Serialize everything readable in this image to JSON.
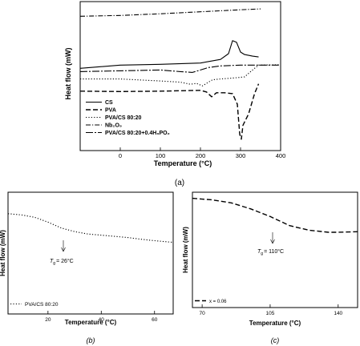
{
  "chart_data": [
    {
      "panel_label": "(a)",
      "type": "line",
      "title": "",
      "xlabel": "Temperature (°C)",
      "ylabel": "Heat flow (mW)",
      "xlim": [
        -100,
        400
      ],
      "xticks": [
        0,
        100,
        200,
        300,
        400
      ],
      "xtick_labels": [
        "0",
        "100",
        "200",
        "300",
        "400"
      ],
      "yticks_shown": false,
      "grid": false,
      "legend_position": "bottom-left",
      "series": [
        {
          "name": "CS",
          "style": "solid",
          "x": [
            -100,
            0,
            100,
            200,
            250,
            270,
            280,
            290,
            300,
            310,
            330,
            345
          ],
          "y": [
            -6.4,
            -6.0,
            -5.9,
            -5.75,
            -5.3,
            -4.6,
            -3.0,
            -3.2,
            -4.4,
            -4.7,
            -4.9,
            -5.0
          ]
        },
        {
          "name": "PVA",
          "style": "dashed",
          "x": [
            -100,
            0,
            100,
            200,
            215,
            228,
            240,
            260,
            280,
            292,
            298,
            302,
            306,
            312,
            320,
            335,
            345
          ],
          "y": [
            -9.2,
            -9.25,
            -9.2,
            -9.1,
            -9.3,
            -9.9,
            -9.4,
            -9.4,
            -9.5,
            -10.8,
            -14.5,
            -15.1,
            -13.4,
            -12.8,
            -12.0,
            -9.5,
            -8.3
          ]
        },
        {
          "name": "PVA/CS 80:20",
          "style": "dotted",
          "x": [
            -100,
            0,
            100,
            150,
            175,
            190,
            205,
            220,
            230,
            250,
            280,
            310,
            330,
            345,
            400
          ],
          "y": [
            -7.7,
            -7.7,
            -7.95,
            -8.1,
            -8.35,
            -8.25,
            -8.55,
            -8.1,
            -7.8,
            -7.7,
            -7.6,
            -7.45,
            -6.6,
            -6.0,
            -5.95
          ]
        },
        {
          "name": "Nb₂O₅",
          "style": "dashdot",
          "x": [
            -100,
            0,
            100,
            200,
            300,
            350
          ],
          "y": [
            0.0,
            0.1,
            0.3,
            0.55,
            0.8,
            0.9
          ]
        },
        {
          "name": "PVA/CS 80:20+0.4H₃PO₂",
          "style": "long-dash",
          "x": [
            -100,
            0,
            100,
            150,
            180,
            200,
            220,
            250,
            300,
            400
          ],
          "y": [
            -6.8,
            -6.7,
            -6.6,
            -6.8,
            -6.9,
            -6.6,
            -6.3,
            -6.1,
            -6.0,
            -6.0
          ]
        }
      ]
    },
    {
      "panel_label": "(b)",
      "type": "line",
      "title": "",
      "xlabel": "Temperature (°C)",
      "ylabel": "Heat flow (mW)",
      "xlim": [
        5,
        67
      ],
      "xticks": [
        20,
        40,
        60
      ],
      "xtick_labels": [
        "20",
        "40",
        "60"
      ],
      "yticks_shown": false,
      "grid": false,
      "legend_position": "bottom-left",
      "annotation": "Tg = 26°C",
      "annotation_sub": "g",
      "annotation_value": "= 26°C",
      "series": [
        {
          "name": "PVA/CS 80:20",
          "style": "dotted",
          "x": [
            5,
            10,
            15,
            20,
            25,
            30,
            35,
            40,
            45,
            50,
            55,
            60,
            67
          ],
          "y": [
            0.0,
            -0.05,
            -0.15,
            -0.35,
            -0.6,
            -0.75,
            -0.85,
            -0.9,
            -0.95,
            -1.0,
            -1.07,
            -1.13,
            -1.2
          ]
        }
      ]
    },
    {
      "panel_label": "(c)",
      "type": "line",
      "title": "",
      "xlabel": "Temperature (°C)",
      "ylabel": "Heat flow (mW)",
      "xlim": [
        65,
        150
      ],
      "xticks": [
        70,
        105,
        140
      ],
      "xtick_labels": [
        "70",
        "105",
        "140"
      ],
      "yticks_shown": false,
      "grid": false,
      "legend_position": "bottom-left",
      "annotation": "Tg = 110°C",
      "annotation_sub": "g",
      "annotation_value": "= 110°C",
      "series": [
        {
          "name": "x = 0.06",
          "style": "dashed",
          "x": [
            65,
            75,
            85,
            95,
            105,
            110,
            115,
            125,
            135,
            140,
            150
          ],
          "y": [
            0.0,
            -0.05,
            -0.15,
            -0.35,
            -0.6,
            -0.75,
            -0.9,
            -1.05,
            -1.12,
            -1.12,
            -1.1
          ]
        }
      ]
    }
  ]
}
